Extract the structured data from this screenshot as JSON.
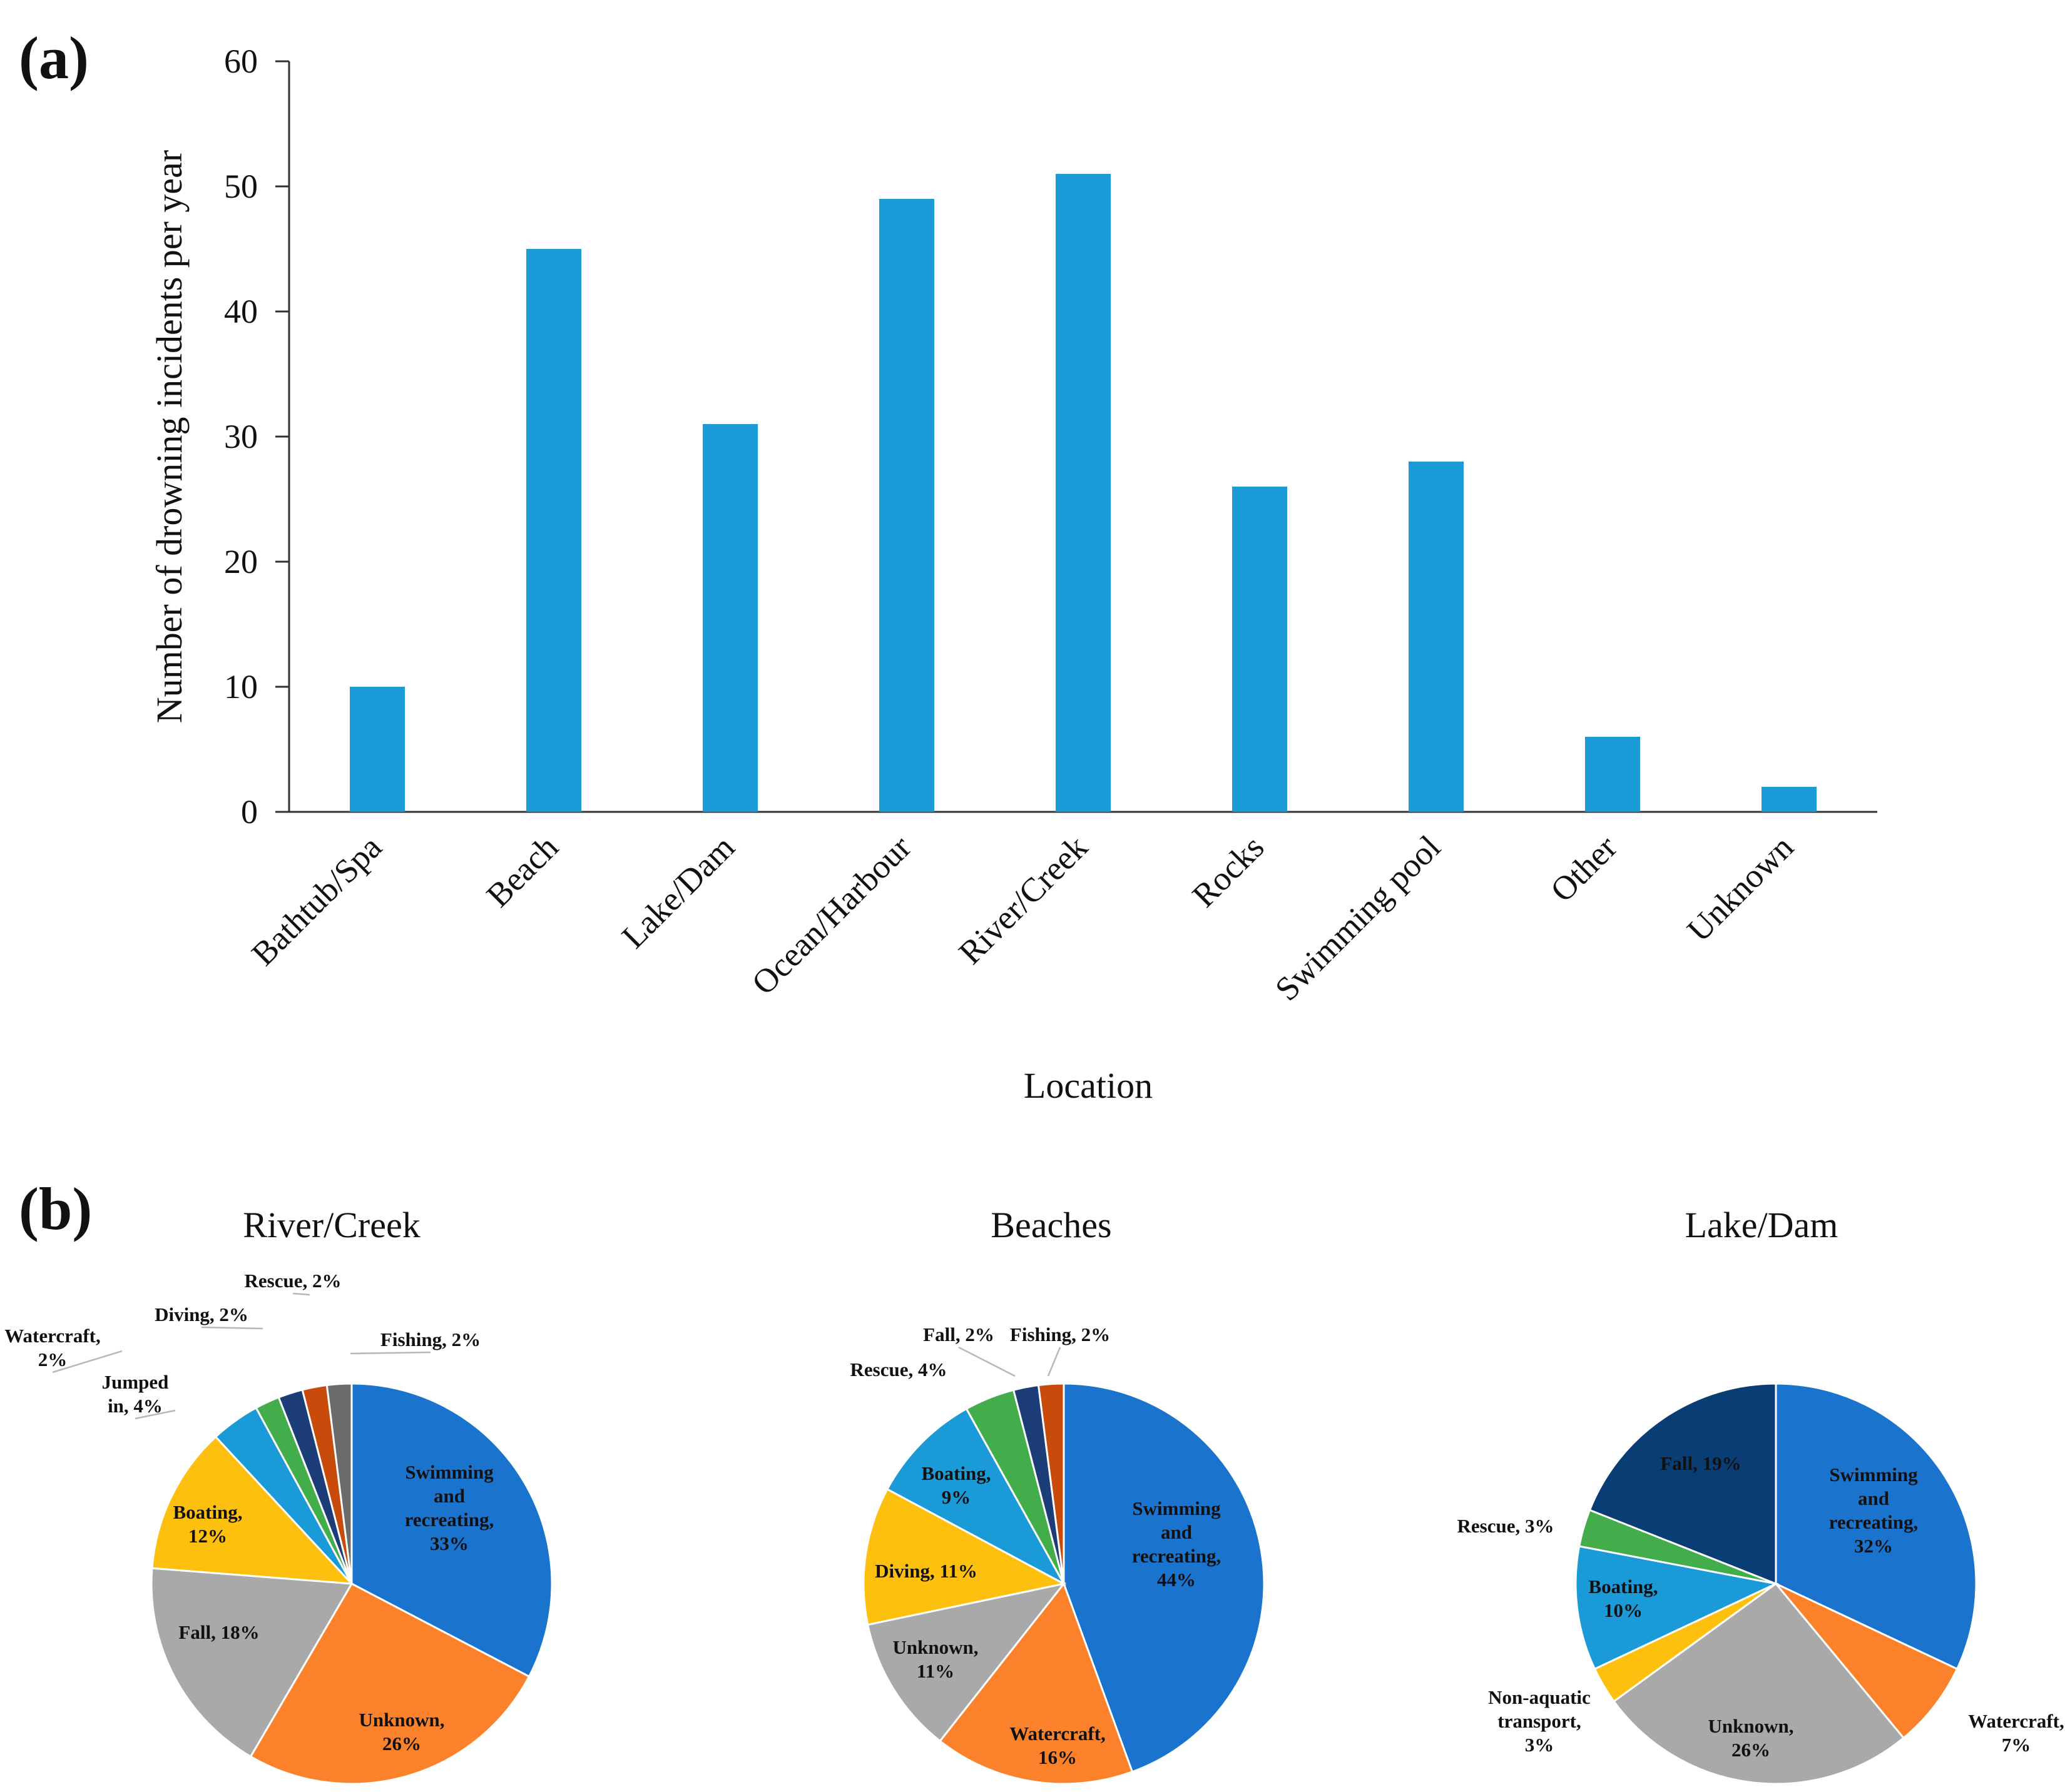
{
  "panels": {
    "a": "(a)",
    "b": "(b)"
  },
  "chart_data": [
    {
      "type": "bar",
      "title": "",
      "xlabel": "Location",
      "ylabel": "Number of drowning incidents per year",
      "ylim": [
        0,
        60
      ],
      "yticks": [
        0,
        10,
        20,
        30,
        40,
        50,
        60
      ],
      "categories": [
        "Bathtub/Spa",
        "Beach",
        "Lake/Dam",
        "Ocean/Harbour",
        "River/Creek",
        "Rocks",
        "Swimming pool",
        "Other",
        "Unknown"
      ],
      "values": [
        10,
        45,
        31,
        49,
        51,
        26,
        28,
        6,
        2
      ],
      "color": "#1a9ad6"
    },
    {
      "type": "pie",
      "title": "River/Creek",
      "slices": [
        {
          "name": "Swimming and recreating",
          "label": "Swimming and recreating, 33%",
          "value": 33,
          "color": "#1a73cc"
        },
        {
          "name": "Unknown",
          "label": "Unknown, 26%",
          "value": 26,
          "color": "#fb822b"
        },
        {
          "name": "Fall",
          "label": "Fall, 18%",
          "value": 18,
          "color": "#a9a9a9"
        },
        {
          "name": "Boating",
          "label": "Boating, 12%",
          "value": 12,
          "color": "#fec00f"
        },
        {
          "name": "Jumped in",
          "label": "Jumped in, 4%",
          "value": 4,
          "color": "#1a9ad6"
        },
        {
          "name": "Watercraft",
          "label": "Watercraft, 2%",
          "value": 2,
          "color": "#43ad4b"
        },
        {
          "name": "Diving",
          "label": "Diving, 2%",
          "value": 2,
          "color": "#1c3d78"
        },
        {
          "name": "Rescue",
          "label": "Rescue, 2%",
          "value": 2,
          "color": "#c84b0b"
        },
        {
          "name": "Fishing",
          "label": "Fishing, 2%",
          "value": 2,
          "color": "#6b6b6b"
        }
      ]
    },
    {
      "type": "pie",
      "title": "Beaches",
      "slices": [
        {
          "name": "Swimming and recreating",
          "label": "Swimming and recreating, 44%",
          "value": 44,
          "color": "#1a73cc"
        },
        {
          "name": "Watercraft",
          "label": "Watercraft, 16%",
          "value": 16,
          "color": "#fb822b"
        },
        {
          "name": "Unknown",
          "label": "Unknown, 11%",
          "value": 11,
          "color": "#a9a9a9"
        },
        {
          "name": "Diving",
          "label": "Diving, 11%",
          "value": 11,
          "color": "#fec00f"
        },
        {
          "name": "Boating",
          "label": "Boating, 9%",
          "value": 9,
          "color": "#1a9ad6"
        },
        {
          "name": "Rescue",
          "label": "Rescue, 4%",
          "value": 4,
          "color": "#43ad4b"
        },
        {
          "name": "Fall",
          "label": "Fall, 2%",
          "value": 2,
          "color": "#1c3d78"
        },
        {
          "name": "Fishing",
          "label": "Fishing, 2%",
          "value": 2,
          "color": "#c84b0b"
        }
      ]
    },
    {
      "type": "pie",
      "title": "Lake/Dam",
      "slices": [
        {
          "name": "Swimming and recreating",
          "label": "Swimming and recreating, 32%",
          "value": 32,
          "color": "#1a73cc"
        },
        {
          "name": "Watercraft",
          "label": "Watercraft, 7%",
          "value": 7,
          "color": "#fb822b"
        },
        {
          "name": "Unknown",
          "label": "Unknown, 26%",
          "value": 26,
          "color": "#a9a9a9"
        },
        {
          "name": "Non-aquatic transport",
          "label": "Non-aquatic transport, 3%",
          "value": 3,
          "color": "#fec00f"
        },
        {
          "name": "Boating",
          "label": "Boating, 10%",
          "value": 10,
          "color": "#1a9ad6"
        },
        {
          "name": "Rescue",
          "label": "Rescue, 3%",
          "value": 3,
          "color": "#43ad4b"
        },
        {
          "name": "Fall",
          "label": "Fall, 19%",
          "value": 19,
          "color": "#0a3d73"
        }
      ]
    }
  ]
}
